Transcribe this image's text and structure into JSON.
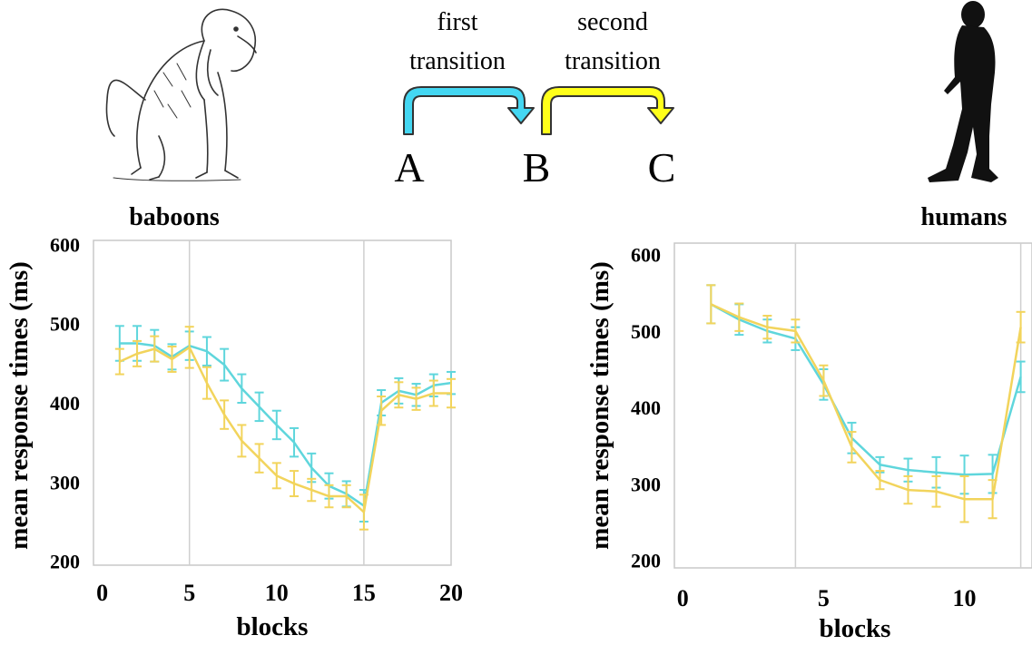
{
  "header": {
    "transition1_label": [
      "first",
      "transition"
    ],
    "transition2_label": [
      "second",
      "transition"
    ],
    "node_a": "A",
    "node_b": "B",
    "node_c": "C",
    "colors": {
      "first": "#44d7f2",
      "second": "#ffff1a",
      "outline": "#333333"
    },
    "icons": [
      "baboon-illustration",
      "human-silhouette"
    ]
  },
  "chart_data": [
    {
      "type": "line",
      "title": "baboons",
      "xlabel": "blocks",
      "ylabel": "mean response times (ms)",
      "xlim": [
        -0.5,
        20
      ],
      "ylim": [
        195,
        605
      ],
      "x_ticks": [
        0,
        5,
        10,
        15,
        20
      ],
      "y_ticks": [
        200,
        300,
        400,
        500,
        600
      ],
      "vlines": [
        5,
        15
      ],
      "grid": false,
      "x": [
        1,
        2,
        3,
        4,
        5,
        6,
        7,
        8,
        9,
        10,
        11,
        12,
        13,
        14,
        15,
        16,
        17,
        18,
        19,
        20
      ],
      "series": [
        {
          "color": "#5fd6dc",
          "values": [
            475,
            475,
            472,
            458,
            472,
            465,
            448,
            418,
            395,
            372,
            350,
            318,
            295,
            285,
            270,
            400,
            415,
            410,
            422,
            425
          ],
          "err": [
            22,
            22,
            20,
            16,
            18,
            18,
            20,
            18,
            18,
            18,
            18,
            18,
            16,
            16,
            20,
            16,
            16,
            14,
            14,
            14
          ]
        },
        {
          "color": "#f2d45c",
          "values": [
            452,
            462,
            468,
            455,
            470,
            425,
            385,
            352,
            330,
            308,
            298,
            290,
            282,
            282,
            262,
            390,
            410,
            405,
            412,
            412
          ],
          "err": [
            16,
            16,
            16,
            16,
            26,
            20,
            18,
            20,
            18,
            16,
            16,
            14,
            14,
            14,
            22,
            18,
            16,
            14,
            16,
            18
          ]
        }
      ]
    },
    {
      "type": "line",
      "title": "humans",
      "xlabel": "blocks",
      "ylabel": "mean response times (ms)",
      "xlim": [
        -0.3,
        12.4
      ],
      "ylim": [
        190,
        615
      ],
      "x_ticks": [
        0,
        5,
        10
      ],
      "y_ticks": [
        200,
        300,
        400,
        500,
        600
      ],
      "vlines": [
        4,
        12
      ],
      "grid": false,
      "x": [
        1,
        2,
        3,
        4,
        5,
        6,
        7,
        8,
        9,
        10,
        11,
        12
      ],
      "series": [
        {
          "color": "#5fd6dc",
          "values": [
            535,
            515,
            500,
            490,
            430,
            360,
            325,
            318,
            315,
            312,
            313,
            440
          ],
          "err": [
            25,
            20,
            15,
            15,
            20,
            20,
            10,
            15,
            20,
            25,
            25,
            20
          ]
        },
        {
          "color": "#f2d45c",
          "values": [
            535,
            518,
            505,
            500,
            435,
            348,
            305,
            292,
            290,
            280,
            280,
            505
          ],
          "err": [
            25,
            18,
            15,
            15,
            20,
            20,
            12,
            18,
            20,
            30,
            25,
            20
          ]
        }
      ]
    }
  ]
}
